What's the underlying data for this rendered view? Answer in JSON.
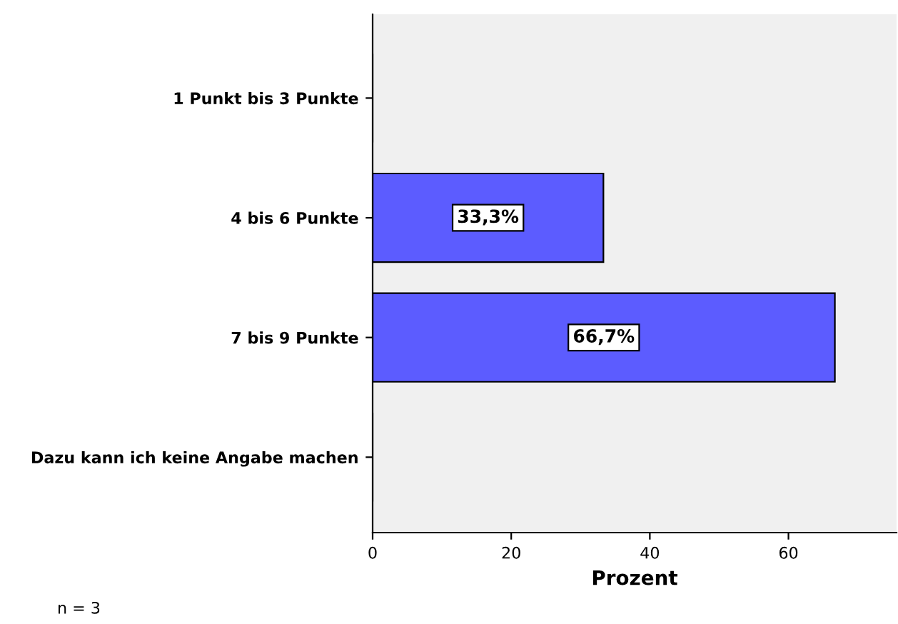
{
  "chart_data": {
    "type": "bar",
    "orientation": "horizontal",
    "categories": [
      "1 Punkt bis 3 Punkte",
      "4 bis 6 Punkte",
      "7 bis 9 Punkte",
      "Dazu kann ich keine Angabe machen"
    ],
    "values": [
      0,
      33.3,
      66.7,
      0
    ],
    "value_labels": [
      null,
      "33,3%",
      "66,7%",
      null
    ],
    "color": "#5c5cff",
    "xlabel": "Prozent",
    "xlim": [
      0,
      75.6
    ],
    "xticks": [
      0,
      20,
      40,
      60
    ],
    "grid": false,
    "legend": false,
    "annotations": [
      "n = 3"
    ]
  }
}
